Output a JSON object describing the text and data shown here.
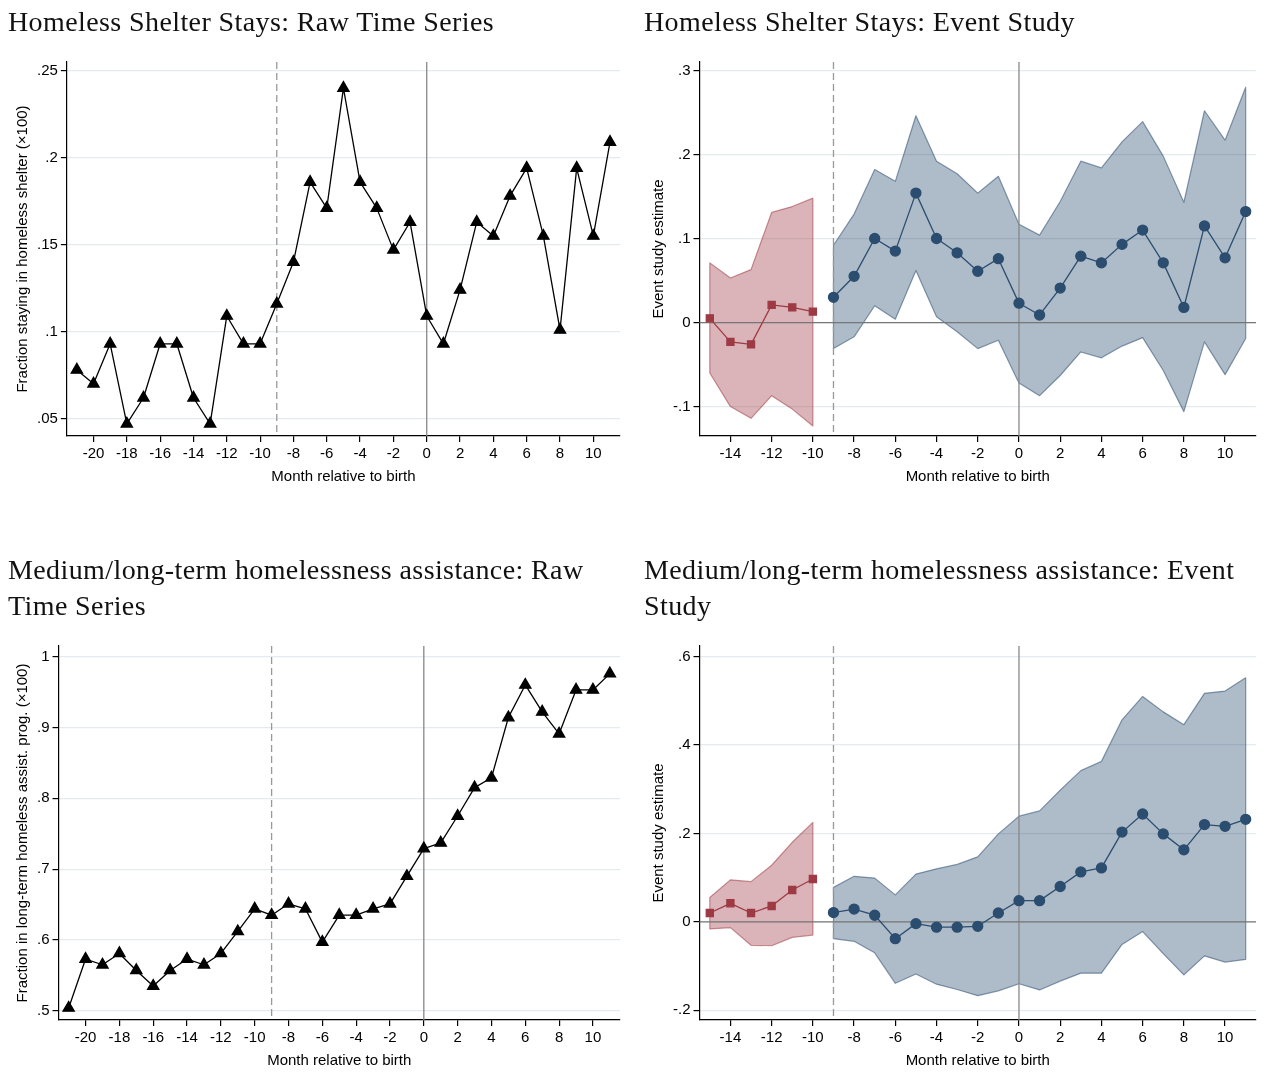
{
  "chart_data": [
    {
      "type": "line",
      "title": "Homeless Shelter Stays: Raw Time Series",
      "xlabel": "Month relative to birth",
      "ylabel": "Fraction staying in homeless shelter (×100)",
      "color": "#000000",
      "marker": "triangle",
      "x": [
        -21,
        -20,
        -19,
        -18,
        -17,
        -16,
        -15,
        -14,
        -13,
        -12,
        -11,
        -10,
        -9,
        -8,
        -7,
        -6,
        -5,
        -4,
        -3,
        -2,
        -1,
        0,
        1,
        2,
        3,
        4,
        5,
        6,
        7,
        8,
        9,
        10,
        11
      ],
      "values": [
        0.078,
        0.07,
        0.093,
        0.047,
        0.062,
        0.093,
        0.093,
        0.062,
        0.047,
        0.109,
        0.093,
        0.093,
        0.116,
        0.14,
        0.186,
        0.171,
        0.24,
        0.186,
        0.171,
        0.147,
        0.163,
        0.109,
        0.093,
        0.124,
        0.163,
        0.155,
        0.178,
        0.194,
        0.155,
        0.101,
        0.194,
        0.155,
        0.209
      ],
      "xlim": [
        -21.6,
        11.6
      ],
      "ylim": [
        0.04,
        0.255
      ],
      "xticks": [
        -20,
        -18,
        -16,
        -14,
        -12,
        -10,
        -8,
        -6,
        -4,
        -2,
        0,
        2,
        4,
        6,
        8,
        10
      ],
      "yticks": [
        {
          "value": 0.05,
          "label": ".05"
        },
        {
          "value": 0.1,
          "label": ".1"
        },
        {
          "value": 0.15,
          "label": ".15"
        },
        {
          "value": 0.2,
          "label": ".2"
        },
        {
          "value": 0.25,
          "label": ".25"
        }
      ],
      "grid": "y",
      "ref_lines": [
        {
          "axis": "x",
          "value": -9,
          "color": "#999999",
          "line_style": "dashed"
        },
        {
          "axis": "x",
          "value": 0,
          "color": "#888888",
          "line_style": "solid"
        }
      ]
    },
    {
      "type": "line",
      "title": "Homeless Shelter Stays: Event Study",
      "xlabel": "Month relative to birth",
      "ylabel": "Event study estimate",
      "series": [
        {
          "color": "#9e3a44",
          "marker": "square",
          "x": [
            -15,
            -14,
            -13,
            -12,
            -11,
            -10
          ],
          "values": [
            0.005,
            -0.023,
            -0.026,
            0.021,
            0.018,
            0.013
          ],
          "lower": [
            -0.06,
            -0.1,
            -0.114,
            -0.087,
            -0.103,
            -0.123
          ],
          "upper": [
            0.071,
            0.053,
            0.063,
            0.131,
            0.138,
            0.148
          ]
        },
        {
          "color": "#2b4d6f",
          "marker": "circle",
          "x": [
            -9,
            -8,
            -7,
            -6,
            -5,
            -4,
            -3,
            -2,
            -1,
            0,
            1,
            2,
            3,
            4,
            5,
            6,
            7,
            8,
            9,
            10,
            11
          ],
          "values": [
            0.03,
            0.055,
            0.1,
            0.085,
            0.154,
            0.1,
            0.083,
            0.061,
            0.076,
            0.023,
            0.009,
            0.041,
            0.079,
            0.071,
            0.093,
            0.11,
            0.071,
            0.018,
            0.115,
            0.077,
            0.132
          ],
          "lower": [
            -0.031,
            -0.017,
            0.02,
            0.004,
            0.062,
            0.007,
            -0.011,
            -0.031,
            -0.021,
            -0.072,
            -0.087,
            -0.063,
            -0.035,
            -0.042,
            -0.028,
            -0.018,
            -0.057,
            -0.106,
            -0.023,
            -0.062,
            -0.019
          ],
          "upper": [
            0.092,
            0.129,
            0.182,
            0.168,
            0.246,
            0.192,
            0.177,
            0.154,
            0.174,
            0.117,
            0.104,
            0.144,
            0.192,
            0.184,
            0.215,
            0.239,
            0.198,
            0.143,
            0.252,
            0.217,
            0.28
          ]
        }
      ],
      "xlim": [
        -15.5,
        11.5
      ],
      "ylim": [
        -0.135,
        0.31
      ],
      "xticks": [
        -14,
        -12,
        -10,
        -8,
        -6,
        -4,
        -2,
        0,
        2,
        4,
        6,
        8,
        10
      ],
      "yticks": [
        {
          "value": -0.1,
          "label": "-.1"
        },
        0,
        {
          "value": 0.1,
          "label": ".1"
        },
        {
          "value": 0.2,
          "label": ".2"
        },
        {
          "value": 0.3,
          "label": ".3"
        }
      ],
      "grid": "y",
      "ref_lines": [
        {
          "axis": "x",
          "value": -9,
          "color": "#999999",
          "line_style": "dashed"
        },
        {
          "axis": "x",
          "value": 0,
          "color": "#888888",
          "line_style": "solid"
        },
        {
          "axis": "y",
          "value": 0,
          "color": "#777777",
          "line_style": "solid"
        }
      ]
    },
    {
      "type": "line",
      "title": "Medium/long-term homelessness assistance: Raw Time Series",
      "xlabel": "Month relative to birth",
      "ylabel": "Fraction in long-term homeless assist. prog. (×100)",
      "color": "#000000",
      "marker": "triangle",
      "x": [
        -21,
        -20,
        -19,
        -18,
        -17,
        -16,
        -15,
        -14,
        -13,
        -12,
        -11,
        -10,
        -9,
        -8,
        -7,
        -6,
        -5,
        -4,
        -3,
        -2,
        -1,
        0,
        1,
        2,
        3,
        4,
        5,
        6,
        7,
        8,
        9,
        10,
        11
      ],
      "values": [
        0.504,
        0.573,
        0.565,
        0.581,
        0.557,
        0.535,
        0.557,
        0.573,
        0.565,
        0.581,
        0.612,
        0.644,
        0.635,
        0.651,
        0.644,
        0.597,
        0.635,
        0.635,
        0.644,
        0.651,
        0.69,
        0.729,
        0.737,
        0.775,
        0.815,
        0.829,
        0.914,
        0.96,
        0.922,
        0.891,
        0.953,
        0.953,
        0.976
      ],
      "xlim": [
        -21.6,
        11.6
      ],
      "ylim": [
        0.487,
        1.015
      ],
      "xticks": [
        -20,
        -18,
        -16,
        -14,
        -12,
        -10,
        -8,
        -6,
        -4,
        -2,
        0,
        2,
        4,
        6,
        8,
        10
      ],
      "yticks": [
        {
          "value": 0.5,
          "label": ".5"
        },
        {
          "value": 0.6,
          "label": ".6"
        },
        {
          "value": 0.7,
          "label": ".7"
        },
        {
          "value": 0.8,
          "label": ".8"
        },
        {
          "value": 0.9,
          "label": ".9"
        },
        {
          "value": 1,
          "label": "1"
        }
      ],
      "grid": "y",
      "ref_lines": [
        {
          "axis": "x",
          "value": -9,
          "color": "#999999",
          "line_style": "dashed"
        },
        {
          "axis": "x",
          "value": 0,
          "color": "#888888",
          "line_style": "solid"
        }
      ]
    },
    {
      "type": "line",
      "title": "Medium/long-term homelessness assistance: Event Study",
      "xlabel": "Month relative to birth",
      "ylabel": "Event study estimate",
      "series": [
        {
          "color": "#9e3a44",
          "marker": "square",
          "x": [
            -15,
            -14,
            -13,
            -12,
            -11,
            -10
          ],
          "values": [
            0.02,
            0.042,
            0.02,
            0.036,
            0.072,
            0.097
          ],
          "lower": [
            -0.016,
            -0.013,
            -0.053,
            -0.054,
            -0.035,
            -0.03
          ],
          "upper": [
            0.055,
            0.095,
            0.091,
            0.128,
            0.18,
            0.225
          ]
        },
        {
          "color": "#2b4d6f",
          "marker": "circle",
          "x": [
            -9,
            -8,
            -7,
            -6,
            -5,
            -4,
            -3,
            -2,
            -1,
            0,
            1,
            2,
            3,
            4,
            5,
            6,
            7,
            8,
            9,
            10,
            11
          ],
          "values": [
            0.021,
            0.029,
            0.015,
            -0.038,
            -0.004,
            -0.012,
            -0.012,
            -0.01,
            0.02,
            0.048,
            0.048,
            0.08,
            0.113,
            0.122,
            0.203,
            0.244,
            0.199,
            0.163,
            0.22,
            0.216,
            0.232
          ],
          "lower": [
            -0.038,
            -0.044,
            -0.07,
            -0.139,
            -0.118,
            -0.141,
            -0.153,
            -0.167,
            -0.156,
            -0.14,
            -0.154,
            -0.134,
            -0.116,
            -0.116,
            -0.051,
            -0.022,
            -0.072,
            -0.12,
            -0.077,
            -0.091,
            -0.085
          ],
          "upper": [
            0.078,
            0.103,
            0.099,
            0.061,
            0.108,
            0.12,
            0.13,
            0.147,
            0.199,
            0.239,
            0.251,
            0.298,
            0.342,
            0.363,
            0.457,
            0.51,
            0.475,
            0.446,
            0.517,
            0.522,
            0.552
          ]
        }
      ],
      "xlim": [
        -15.5,
        11.5
      ],
      "ylim": [
        -0.222,
        0.624
      ],
      "xticks": [
        -14,
        -12,
        -10,
        -8,
        -6,
        -4,
        -2,
        0,
        2,
        4,
        6,
        8,
        10
      ],
      "yticks": [
        {
          "value": -0.2,
          "label": "-.2"
        },
        0,
        {
          "value": 0.2,
          "label": ".2"
        },
        {
          "value": 0.4,
          "label": ".4"
        },
        {
          "value": 0.6,
          "label": ".6"
        }
      ],
      "grid": "y",
      "ref_lines": [
        {
          "axis": "x",
          "value": -9,
          "color": "#999999",
          "line_style": "dashed"
        },
        {
          "axis": "x",
          "value": 0,
          "color": "#888888",
          "line_style": "solid"
        },
        {
          "axis": "y",
          "value": 0,
          "color": "#777777",
          "line_style": "solid"
        }
      ]
    }
  ]
}
